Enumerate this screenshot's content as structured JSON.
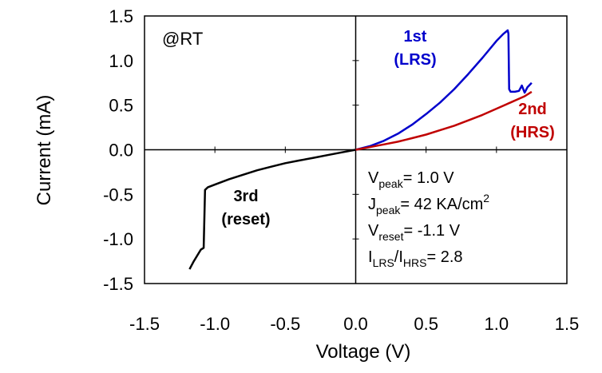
{
  "chart_data": {
    "type": "line",
    "xlabel": "Voltage (V)",
    "ylabel": "Current (mA)",
    "xlim": [
      -1.5,
      1.5
    ],
    "ylim": [
      -1.5,
      1.5
    ],
    "xticks": [
      "-1.5",
      "-1.0",
      "-0.5",
      "0.0",
      "0.5",
      "1.0",
      "1.5"
    ],
    "yticks": [
      "1.5",
      "1.0",
      "0.5",
      "0.0",
      "-0.5",
      "-1.0",
      "-1.5"
    ],
    "grid": false,
    "series": [
      {
        "name": "1st (LRS)",
        "label_lines": [
          "1st",
          "(LRS)"
        ],
        "color": "#0000cc",
        "x": [
          0.0,
          0.1,
          0.2,
          0.3,
          0.4,
          0.5,
          0.6,
          0.7,
          0.8,
          0.9,
          1.0,
          1.05,
          1.08,
          1.085,
          1.09,
          1.1,
          1.13,
          1.16,
          1.18,
          1.2,
          1.22,
          1.25
        ],
        "y": [
          0.0,
          0.04,
          0.1,
          0.18,
          0.28,
          0.4,
          0.53,
          0.68,
          0.85,
          1.03,
          1.22,
          1.3,
          1.34,
          1.3,
          0.68,
          0.65,
          0.65,
          0.66,
          0.72,
          0.64,
          0.7,
          0.75
        ]
      },
      {
        "name": "2nd (HRS)",
        "label_lines": [
          "2nd",
          "(HRS)"
        ],
        "color": "#c00000",
        "x": [
          0.0,
          0.1,
          0.2,
          0.3,
          0.4,
          0.5,
          0.6,
          0.7,
          0.8,
          0.9,
          1.0,
          1.1,
          1.2,
          1.25
        ],
        "y": [
          0.0,
          0.03,
          0.06,
          0.09,
          0.13,
          0.17,
          0.22,
          0.27,
          0.33,
          0.39,
          0.46,
          0.53,
          0.6,
          0.65
        ]
      },
      {
        "name": "3rd (reset)",
        "label_lines": [
          "3rd",
          "(reset)"
        ],
        "color": "#000000",
        "x": [
          0.0,
          -0.1,
          -0.2,
          -0.3,
          -0.4,
          -0.5,
          -0.6,
          -0.7,
          -0.8,
          -0.9,
          -1.0,
          -1.05,
          -1.07,
          -1.08,
          -1.1,
          -1.15,
          -1.18
        ],
        "y": [
          0.0,
          -0.03,
          -0.06,
          -0.09,
          -0.12,
          -0.15,
          -0.19,
          -0.23,
          -0.28,
          -0.33,
          -0.39,
          -0.42,
          -0.45,
          -1.1,
          -1.12,
          -1.25,
          -1.34
        ]
      }
    ],
    "annotations": {
      "condition": "@RT",
      "params": [
        {
          "main": "V",
          "sub": "peak",
          "rest": "= 1.0 V"
        },
        {
          "main": "J",
          "sub": "peak",
          "rest": "= 42 KA/cm",
          "sup": "2"
        },
        {
          "main": "V",
          "sub": "reset",
          "rest": "= -1.1 V"
        },
        {
          "main": "I",
          "sub": "LRS",
          "rest": "/I",
          "sub2": "HRS",
          "rest2": "= 2.8"
        }
      ]
    }
  }
}
